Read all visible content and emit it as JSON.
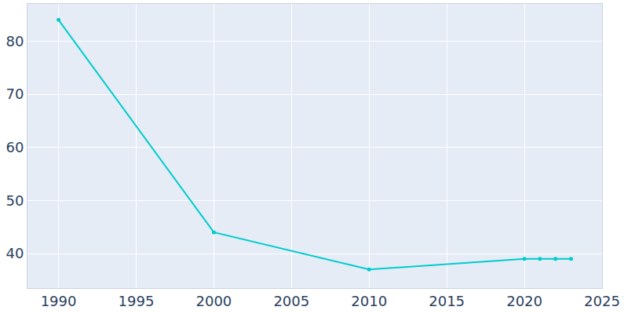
{
  "chart_data": {
    "type": "line",
    "x": [
      1990,
      2000,
      2010,
      2020,
      2021,
      2022,
      2023
    ],
    "values": [
      84,
      44,
      37,
      39,
      39,
      39,
      39
    ],
    "color": "#00cccc",
    "marker": "circle",
    "xlim": [
      1988,
      2025
    ],
    "xticks": [
      1990,
      1995,
      2000,
      2005,
      2010,
      2015,
      2020,
      2025
    ],
    "ylim": [
      33.5,
      87
    ],
    "yticks": [
      40,
      50,
      60,
      70,
      80
    ],
    "grid": true
  }
}
